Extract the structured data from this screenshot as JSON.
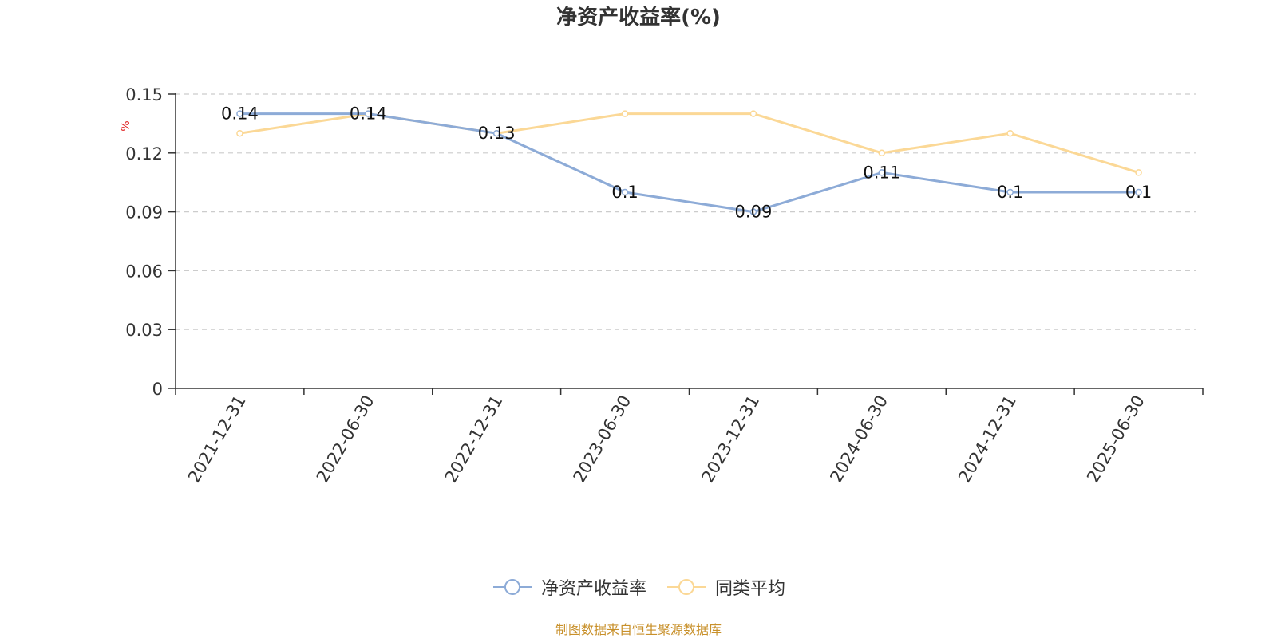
{
  "chart_data": {
    "type": "line",
    "title": "净资产收益率(%)",
    "ylabel": "%",
    "xlabel": "",
    "categories": [
      "2021-12-31",
      "2022-06-30",
      "2022-12-31",
      "2023-06-30",
      "2023-12-31",
      "2024-06-30",
      "2024-12-31",
      "2025-06-30"
    ],
    "ylim": [
      0,
      0.15
    ],
    "yticks": [
      "0",
      "0.03",
      "0.06",
      "0.09",
      "0.12",
      "0.15"
    ],
    "grid": true,
    "legend_position": "bottom",
    "series": [
      {
        "name": "净资产收益率",
        "color": "#8dabd7",
        "values": [
          0.14,
          0.14,
          0.13,
          0.1,
          0.09,
          0.11,
          0.1,
          0.1
        ],
        "labels": [
          "0.14",
          "0.14",
          "0.13",
          "0.1",
          "0.09",
          "0.11",
          "0.1",
          "0.1"
        ]
      },
      {
        "name": "同类平均",
        "color": "#fbd896",
        "values": [
          0.13,
          0.14,
          0.13,
          0.14,
          0.14,
          0.12,
          0.13,
          0.11
        ]
      }
    ]
  },
  "footer": {
    "source_note": "制图数据来自恒生聚源数据库"
  }
}
